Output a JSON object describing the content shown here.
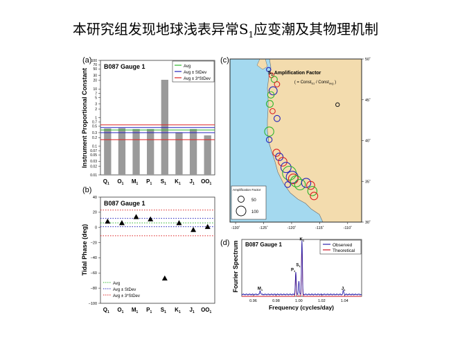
{
  "slide": {
    "title_main": "本研究组发现地球浅表异常S",
    "title_sub": "1",
    "title_tail": "应变潮及其物理机制"
  },
  "colors": {
    "bar": "#9a9a9a",
    "green": "#2db52d",
    "blue": "#2222bb",
    "red": "#dd2222",
    "ocean": "#a4d9ef",
    "land": "#f3dcae",
    "spec_observed": "#2b22aa",
    "spec_theoretical": "#cc1122"
  },
  "chart_data": [
    {
      "type": "bar",
      "panel_label": "(a)",
      "inner_title": "B087  Gauge 1",
      "ylabel": "Instrument Proportional Constant",
      "yscale": "log",
      "ylim": [
        0.01,
        100
      ],
      "ytick_labels": [
        "100",
        "70",
        "50",
        "30",
        "20",
        "10",
        "7",
        "5",
        "3",
        "2",
        "1",
        "0.7",
        "0.5",
        "0.3",
        "0.2",
        "0.1",
        "0.07",
        "0.05",
        "0.03",
        "0.02",
        "0.01"
      ],
      "ytick_values": [
        100,
        70,
        50,
        30,
        20,
        10,
        7,
        5,
        3,
        2,
        1,
        0.7,
        0.5,
        0.3,
        0.2,
        0.1,
        0.07,
        0.05,
        0.03,
        0.02,
        0.01
      ],
      "categories": [
        "Q1",
        "O1",
        "M1",
        "P1",
        "S1",
        "K1",
        "J1",
        "OO1"
      ],
      "category_main": [
        "Q",
        "O",
        "M",
        "P",
        "S",
        "K",
        "J",
        "OO"
      ],
      "category_sub": [
        "1",
        "1",
        "1",
        "1",
        "1",
        "1",
        "1",
        "1"
      ],
      "values": [
        0.42,
        0.43,
        0.4,
        0.4,
        21,
        0.31,
        0.4,
        0.24
      ],
      "hlines": {
        "avg": 0.37,
        "stdev": [
          0.3,
          0.45
        ],
        "three_stdev": [
          0.17,
          0.56
        ]
      },
      "legend": [
        "Avg",
        "Avg ± StDev",
        "Avg ± 3*StDev"
      ],
      "legend_position": "top-right"
    },
    {
      "type": "scatter",
      "panel_label": "(b)",
      "inner_title": "B087  Gauge 1",
      "ylabel": "Tidal Phase (deg)",
      "ylim": [
        -100,
        40
      ],
      "ytick_values": [
        40,
        20,
        0,
        -20,
        -40,
        -60,
        -80,
        -100
      ],
      "ytick_labels": [
        "40",
        "20",
        "0",
        "−20",
        "−40",
        "−60",
        "−80",
        "−100"
      ],
      "categories": [
        "Q1",
        "O1",
        "M1",
        "P1",
        "S1",
        "K1",
        "J1",
        "OO1"
      ],
      "category_main": [
        "Q",
        "O",
        "M",
        "P",
        "S",
        "K",
        "J",
        "OO"
      ],
      "category_sub": [
        "1",
        "1",
        "1",
        "1",
        "1",
        "1",
        "1",
        "1"
      ],
      "values": [
        8,
        6,
        14,
        11,
        -67,
        6,
        -3,
        1
      ],
      "hlines": {
        "avg": 6,
        "stdev": [
          1,
          12
        ],
        "three_stdev": [
          -11,
          23
        ]
      },
      "legend": [
        "Avg",
        "Avg ± StDev",
        "Avg ± 3*StDev"
      ],
      "legend_position": "bottom-left"
    },
    {
      "type": "map",
      "panel_label": "(c)",
      "inner_title_main": "S",
      "inner_title_sub": "1",
      "inner_title_tail": " Amplification Factor",
      "formula_lead": "( = Const",
      "formula_sub1": "S1",
      "formula_mid": " / Const",
      "formula_sub2": "avg",
      "formula_end": " )",
      "lon_ticks": [
        "-130˚",
        "-125˚",
        "-120˚",
        "-115˚",
        "-110˚"
      ],
      "lon_values": [
        -130,
        -125,
        -120,
        -115,
        -110
      ],
      "lat_ticks": [
        "50˚",
        "45˚",
        "40˚",
        "35˚",
        "30˚"
      ],
      "lat_values": [
        50,
        45,
        40,
        35,
        30
      ],
      "lon_range": [
        -131,
        -107.5
      ],
      "lat_range": [
        30,
        50
      ],
      "legend_title": "Amplification Factor",
      "legend_items": [
        {
          "label": "50",
          "value": 50
        },
        {
          "label": "100",
          "value": 100
        }
      ],
      "stations": [
        {
          "lon": -124.1,
          "lat": 48.7,
          "value": 20,
          "color": "#2222bb"
        },
        {
          "lon": -123.6,
          "lat": 48.0,
          "value": 25,
          "color": "#dd2222"
        },
        {
          "lon": -123.1,
          "lat": 47.5,
          "value": 40,
          "color": "#2db52d"
        },
        {
          "lon": -122.6,
          "lat": 46.9,
          "value": 30,
          "color": "#dd2222"
        },
        {
          "lon": -123.3,
          "lat": 46.1,
          "value": 70,
          "color": "#2222bb"
        },
        {
          "lon": -123.7,
          "lat": 45.6,
          "value": 45,
          "color": "#2db52d"
        },
        {
          "lon": -123.9,
          "lat": 44.5,
          "value": 50,
          "color": "#2db52d"
        },
        {
          "lon": -123.4,
          "lat": 43.6,
          "value": 30,
          "color": "#dd2222"
        },
        {
          "lon": -122.6,
          "lat": 42.7,
          "value": 40,
          "color": "#2222bb"
        },
        {
          "lon": -124.0,
          "lat": 41.1,
          "value": 90,
          "color": "#2db52d"
        },
        {
          "lon": -124.0,
          "lat": 40.1,
          "value": 35,
          "color": "#2222bb"
        },
        {
          "lon": -122.7,
          "lat": 38.5,
          "value": 55,
          "color": "#dd2222"
        },
        {
          "lon": -122.2,
          "lat": 38.0,
          "value": 60,
          "color": "#2222bb"
        },
        {
          "lon": -121.6,
          "lat": 37.4,
          "value": 80,
          "color": "#dd2222"
        },
        {
          "lon": -121.0,
          "lat": 36.7,
          "value": 110,
          "color": "#2222bb"
        },
        {
          "lon": -120.4,
          "lat": 36.0,
          "value": 200,
          "color": "#2db52d"
        },
        {
          "lon": -119.9,
          "lat": 35.5,
          "value": 150,
          "color": "#2222bb"
        },
        {
          "lon": -119.7,
          "lat": 35.3,
          "value": 100,
          "color": "#dd2222"
        },
        {
          "lon": -119.2,
          "lat": 35.0,
          "value": 130,
          "color": "#2db52d"
        },
        {
          "lon": -118.5,
          "lat": 34.6,
          "value": 120,
          "color": "#2db52d"
        },
        {
          "lon": -117.4,
          "lat": 34.8,
          "value": 90,
          "color": "#2222bb"
        },
        {
          "lon": -116.6,
          "lat": 34.5,
          "value": 70,
          "color": "#dd2222"
        },
        {
          "lon": -116.3,
          "lat": 33.8,
          "value": 90,
          "color": "#2db52d"
        },
        {
          "lon": -116.0,
          "lat": 33.2,
          "value": 60,
          "color": "#dd2222"
        },
        {
          "lon": -120.7,
          "lat": 34.6,
          "value": 35,
          "color": "#2222bb"
        },
        {
          "lon": -111.8,
          "lat": 44.4,
          "value": 15,
          "color": "#222222"
        }
      ]
    },
    {
      "type": "line",
      "panel_label": "(d)",
      "inner_title": "B087  Gauge 1",
      "xlabel": "Frequency (cycles/day)",
      "ylabel": "Fourier Spectrum",
      "xlim": [
        0.95,
        1.055
      ],
      "xtick_labels": [
        "0.96",
        "0.98",
        "1.00",
        "1.02",
        "1.04"
      ],
      "xtick_values": [
        0.96,
        0.98,
        1.0,
        1.02,
        1.04
      ],
      "ylim": [
        0,
        1.05
      ],
      "series": [
        {
          "name": "Observed",
          "color": "#2b22aa",
          "peaks": [
            {
              "x": 0.9661,
              "y": 0.07
            },
            {
              "x": 0.9973,
              "y": 0.42
            },
            {
              "x": 1.0,
              "y": 0.24
            },
            {
              "x": 1.0027,
              "y": 1.0
            },
            {
              "x": 1.039,
              "y": 0.07
            }
          ],
          "baseline": 0.035
        },
        {
          "name": "Theoretical",
          "color": "#cc1122",
          "peaks": [
            {
              "x": 0.9973,
              "y": 0.44
            },
            {
              "x": 1.0027,
              "y": 0.98
            }
          ],
          "baseline": 0.0
        }
      ],
      "peak_labels": [
        {
          "main": "M",
          "sub": "1",
          "x": 0.9661,
          "y": 0.12
        },
        {
          "main": "P",
          "sub": "1",
          "x": 0.995,
          "y": 0.47
        },
        {
          "main": "S",
          "sub": "1",
          "x": 0.9995,
          "y": 0.56
        },
        {
          "main": "K",
          "sub": "1",
          "x": 1.0027,
          "y": 1.03
        },
        {
          "main": "J",
          "sub": "1",
          "x": 1.039,
          "y": 0.12
        }
      ],
      "legend_position": "top-right"
    }
  ]
}
